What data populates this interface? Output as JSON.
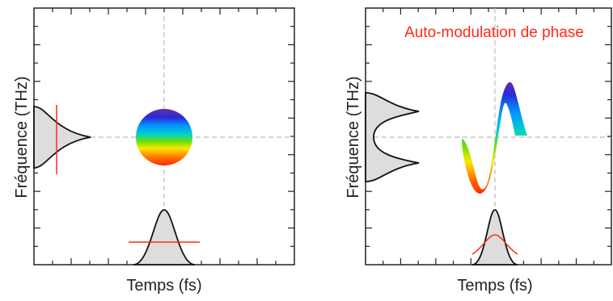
{
  "panels": [
    {
      "id": "left",
      "xlabel": "Temps (fs)",
      "ylabel": "Fréquence (THz)",
      "annotation": ""
    },
    {
      "id": "right",
      "xlabel": "Temps (fs)",
      "ylabel": "Fréquence (THz)",
      "annotation": "Auto-modulation de phase"
    }
  ],
  "colors": {
    "axis": "#222222",
    "crosshair": "#bbbbbb",
    "profile_fill": "#dddddd",
    "profile_stroke": "#111111",
    "bandwidth_marker": "#ff2a1a",
    "annotation": "#ff2a1a",
    "spectrum": [
      "#ff2a00",
      "#ff7a00",
      "#ffe600",
      "#6ee000",
      "#00d2c8",
      "#0096ff",
      "#2a2ad8",
      "#6a2aa8"
    ]
  }
}
